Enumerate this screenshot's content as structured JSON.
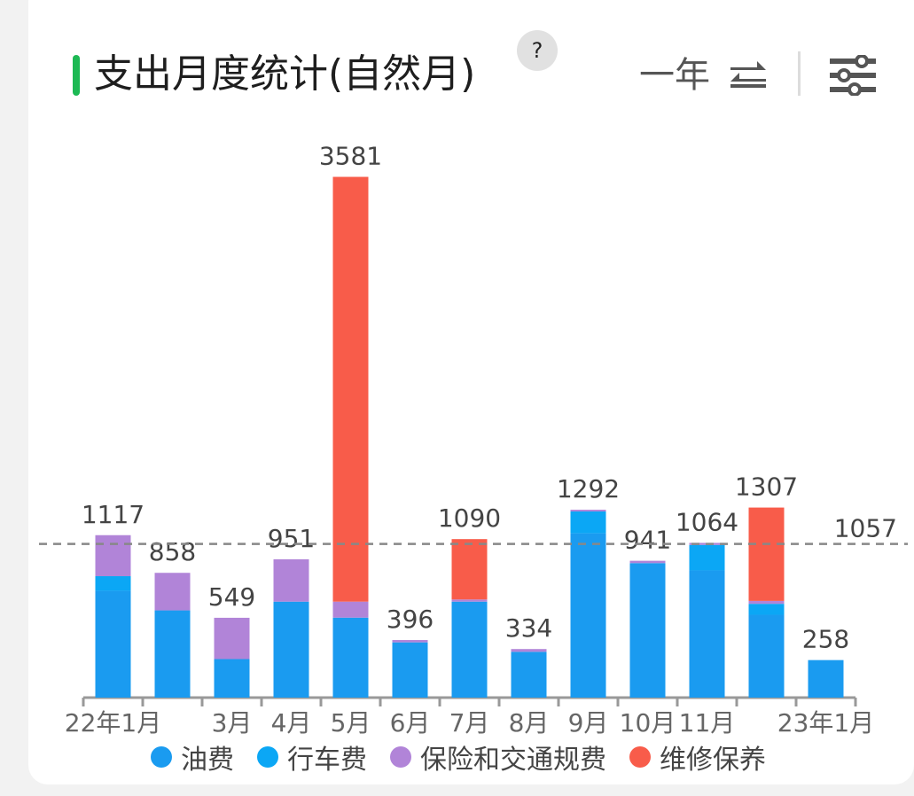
{
  "header": {
    "title": "支出月度统计(自然月)",
    "help_label": "?",
    "period_label": "一年",
    "icons": {
      "swap": "swap-arrows-icon",
      "filter": "filter-sliders-icon"
    },
    "accent_color": "#1db954"
  },
  "chart_data": {
    "type": "bar",
    "stacked": true,
    "categories": [
      "22年1月",
      "",
      "3月",
      "4月",
      "5月",
      "6月",
      "7月",
      "8月",
      "9月",
      "10月",
      "11月",
      "",
      "23年1月"
    ],
    "totals_labels": [
      "1117",
      "858",
      "549",
      "951",
      "3581",
      "396",
      "1090",
      "334",
      "1292",
      "941",
      "1064",
      "1307",
      "258"
    ],
    "series": [
      {
        "name": "油费",
        "color": "#1a9bf0",
        "values": [
          735,
          600,
          265,
          660,
          550,
          380,
          660,
          315,
          1130,
          925,
          875,
          570,
          258
        ]
      },
      {
        "name": "行车费",
        "color": "#0ba7f5",
        "values": [
          100,
          0,
          0,
          0,
          0,
          0,
          0,
          0,
          150,
          0,
          175,
          75,
          0
        ]
      },
      {
        "name": "保险和交通规费",
        "color": "#b184d8",
        "values": [
          282,
          258,
          284,
          291,
          110,
          16,
          15,
          19,
          12,
          16,
          14,
          20,
          0
        ]
      },
      {
        "name": "维修保养",
        "color": "#f85c4a",
        "values": [
          0,
          0,
          0,
          0,
          2921,
          0,
          415,
          0,
          0,
          0,
          0,
          642,
          0
        ]
      }
    ],
    "average": {
      "value": 1057,
      "label": "1057"
    },
    "ylim": [
      0,
      3700
    ],
    "legend_position": "bottom"
  }
}
